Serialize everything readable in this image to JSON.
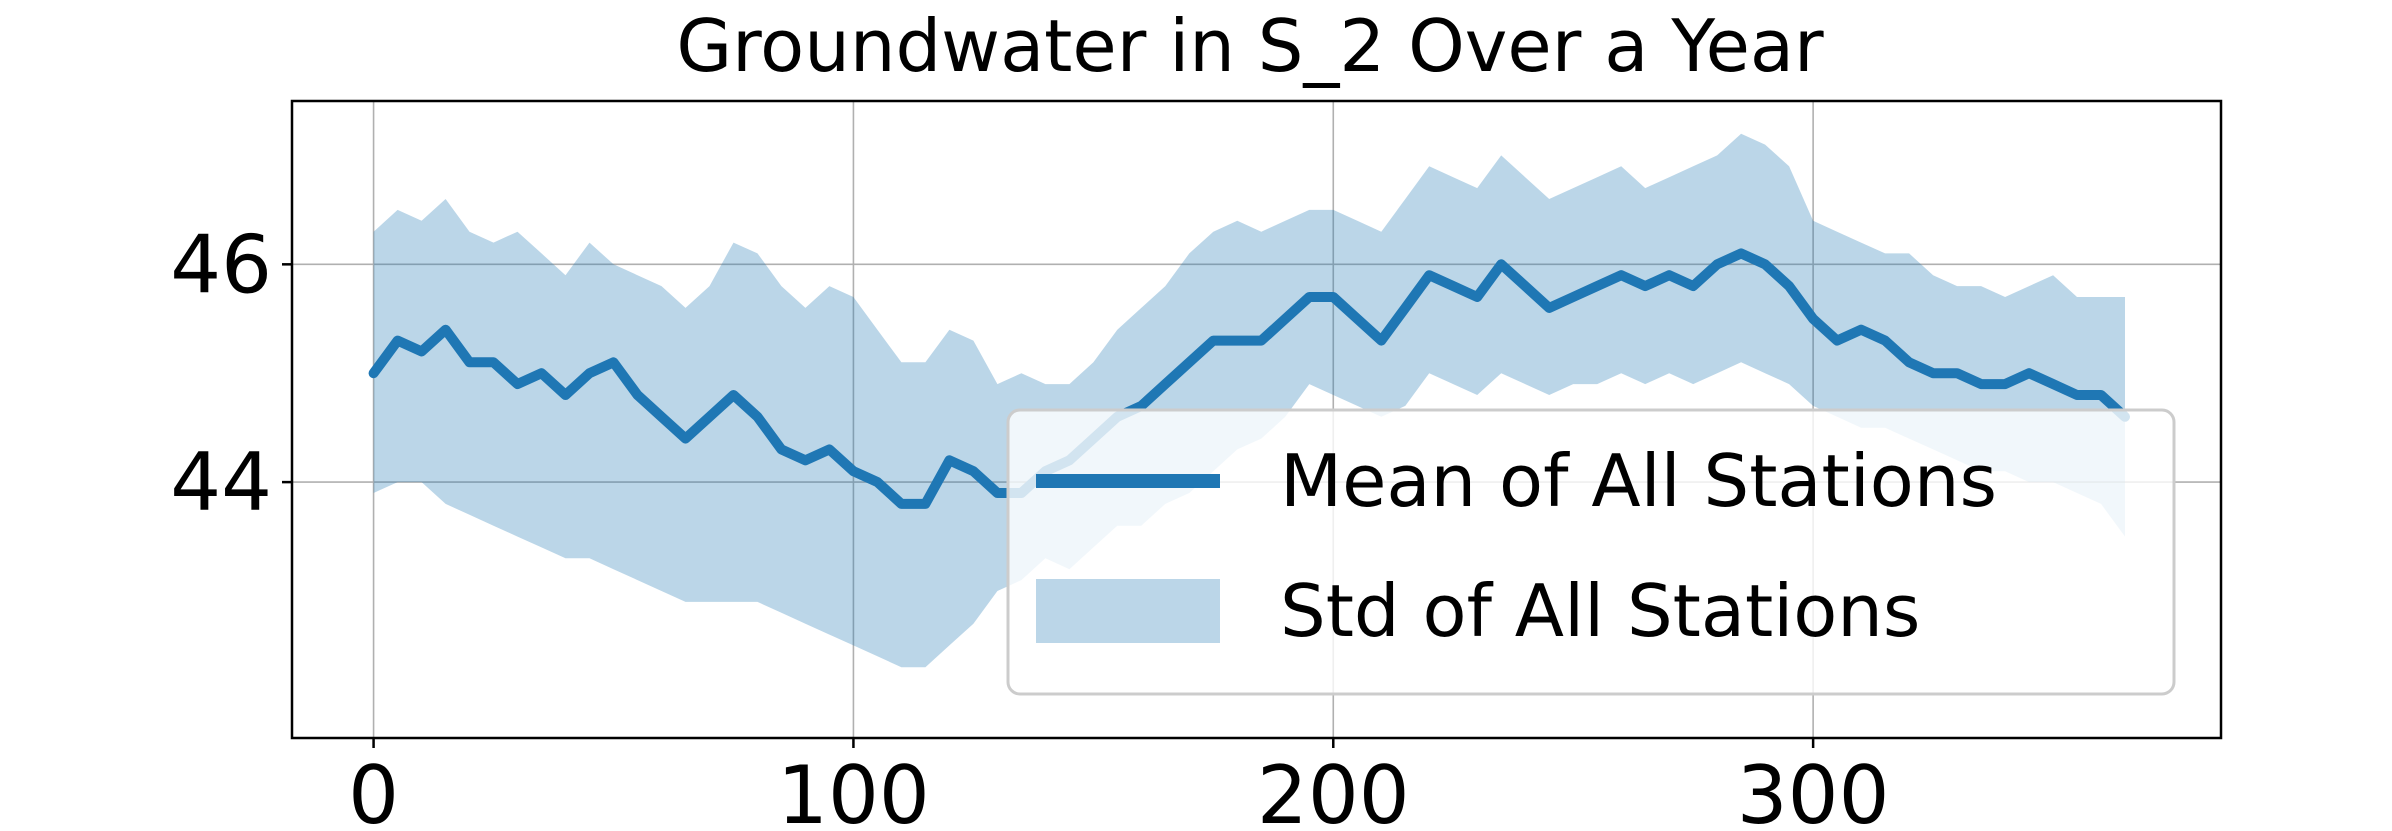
{
  "chart_data": {
    "type": "line",
    "title": "Groundwater in S_2 Over a Year",
    "xlabel": "",
    "ylabel": "",
    "xlim": [
      -17,
      385
    ],
    "ylim": [
      41.65,
      47.5
    ],
    "xticks": [
      0,
      100,
      200,
      300
    ],
    "yticks": [
      44,
      46
    ],
    "grid": true,
    "legend_position": "lower right",
    "colors": {
      "line": "#1f77b4",
      "band": "#1f77b4",
      "grid": "#b0b0b0",
      "axes": "#000000"
    },
    "series": [
      {
        "name": "Mean of All Stations",
        "kind": "line",
        "x": [
          0,
          5,
          10,
          15,
          20,
          25,
          30,
          35,
          40,
          45,
          50,
          55,
          60,
          65,
          70,
          75,
          80,
          85,
          90,
          95,
          100,
          105,
          110,
          115,
          120,
          125,
          130,
          135,
          140,
          145,
          150,
          155,
          160,
          165,
          170,
          175,
          180,
          185,
          190,
          195,
          200,
          205,
          210,
          215,
          220,
          225,
          230,
          235,
          240,
          245,
          250,
          255,
          260,
          265,
          270,
          275,
          280,
          285,
          290,
          295,
          300,
          305,
          310,
          315,
          320,
          325,
          330,
          335,
          340,
          345,
          350,
          355,
          360,
          365
        ],
        "y": [
          45.0,
          45.3,
          45.2,
          45.4,
          45.1,
          45.1,
          44.9,
          45.0,
          44.8,
          45.0,
          45.1,
          44.8,
          44.6,
          44.4,
          44.6,
          44.8,
          44.6,
          44.3,
          44.2,
          44.3,
          44.1,
          44.0,
          43.8,
          43.8,
          44.2,
          44.1,
          43.9,
          43.9,
          44.1,
          44.2,
          44.4,
          44.6,
          44.7,
          44.9,
          45.1,
          45.3,
          45.3,
          45.3,
          45.5,
          45.7,
          45.7,
          45.5,
          45.3,
          45.6,
          45.9,
          45.8,
          45.7,
          46.0,
          45.8,
          45.6,
          45.7,
          45.8,
          45.9,
          45.8,
          45.9,
          45.8,
          46.0,
          46.1,
          46.0,
          45.8,
          45.5,
          45.3,
          45.4,
          45.3,
          45.1,
          45.0,
          45.0,
          44.9,
          44.9,
          45.0,
          44.9,
          44.8,
          44.8,
          44.6
        ]
      },
      {
        "name": "Std of All Stations",
        "kind": "band",
        "x": [
          0,
          5,
          10,
          15,
          20,
          25,
          30,
          35,
          40,
          45,
          50,
          55,
          60,
          65,
          70,
          75,
          80,
          85,
          90,
          95,
          100,
          105,
          110,
          115,
          120,
          125,
          130,
          135,
          140,
          145,
          150,
          155,
          160,
          165,
          170,
          175,
          180,
          185,
          190,
          195,
          200,
          205,
          210,
          215,
          220,
          225,
          230,
          235,
          240,
          245,
          250,
          255,
          260,
          265,
          270,
          275,
          280,
          285,
          290,
          295,
          300,
          305,
          310,
          315,
          320,
          325,
          330,
          335,
          340,
          345,
          350,
          355,
          360,
          365
        ],
        "lower": [
          43.9,
          44.0,
          44.0,
          43.8,
          43.7,
          43.6,
          43.5,
          43.4,
          43.3,
          43.3,
          43.2,
          43.1,
          43.0,
          42.9,
          42.9,
          42.9,
          42.9,
          42.8,
          42.7,
          42.6,
          42.5,
          42.4,
          42.3,
          42.3,
          42.5,
          42.7,
          43.0,
          43.1,
          43.3,
          43.2,
          43.4,
          43.6,
          43.6,
          43.8,
          43.9,
          44.1,
          44.3,
          44.4,
          44.6,
          44.9,
          44.8,
          44.7,
          44.6,
          44.7,
          45.0,
          44.9,
          44.8,
          45.0,
          44.9,
          44.8,
          44.9,
          44.9,
          45.0,
          44.9,
          45.0,
          44.9,
          45.0,
          45.1,
          45.0,
          44.9,
          44.7,
          44.6,
          44.5,
          44.5,
          44.4,
          44.3,
          44.2,
          44.1,
          44.1,
          44.0,
          44.0,
          43.9,
          43.8,
          43.5
        ],
        "upper": [
          46.3,
          46.5,
          46.4,
          46.6,
          46.3,
          46.2,
          46.3,
          46.1,
          45.9,
          46.2,
          46.0,
          45.9,
          45.8,
          45.6,
          45.8,
          46.2,
          46.1,
          45.8,
          45.6,
          45.8,
          45.7,
          45.4,
          45.1,
          45.1,
          45.4,
          45.3,
          44.9,
          45.0,
          44.9,
          44.9,
          45.1,
          45.4,
          45.6,
          45.8,
          46.1,
          46.3,
          46.4,
          46.3,
          46.4,
          46.5,
          46.5,
          46.4,
          46.3,
          46.6,
          46.9,
          46.8,
          46.7,
          47.0,
          46.8,
          46.6,
          46.7,
          46.8,
          46.9,
          46.7,
          46.8,
          46.9,
          47.0,
          47.2,
          47.1,
          46.9,
          46.4,
          46.3,
          46.2,
          46.1,
          46.1,
          45.9,
          45.8,
          45.8,
          45.7,
          45.8,
          45.9,
          45.7,
          45.7,
          45.7
        ]
      }
    ]
  }
}
